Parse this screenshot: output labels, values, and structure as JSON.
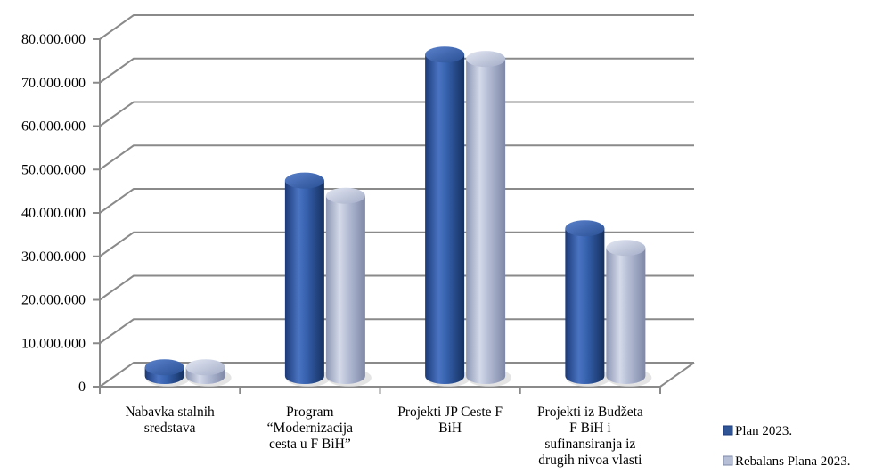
{
  "chart_data": {
    "type": "bar",
    "style": "3d-cylinder",
    "categories": [
      [
        "Nabavka stalnih",
        "sredstava"
      ],
      [
        "Program",
        "“Modernizacija",
        "cesta u F BiH”"
      ],
      [
        "Projekti JP Ceste F",
        "BiH"
      ],
      [
        "Projekti iz Budžeta",
        "F BiH i",
        "sufinansiranja iz",
        "drugih nivoa vlasti"
      ]
    ],
    "series": [
      {
        "name": "Plan 2023.",
        "values": [
          2000000,
          45000000,
          74000000,
          34000000
        ],
        "color": "#2f5597"
      },
      {
        "name": "Rebalans Plana 2023.",
        "values": [
          2000000,
          41500000,
          73000000,
          29500000
        ],
        "color": "#a9b3cf"
      }
    ],
    "yticks": [
      "0",
      "10.000.000",
      "20.000.000",
      "30.000.000",
      "40.000.000",
      "50.000.000",
      "60.000.000",
      "70.000.000",
      "80.000.000"
    ],
    "ylim": [
      0,
      80000000
    ],
    "grid": true,
    "legend": "bottom-right"
  }
}
